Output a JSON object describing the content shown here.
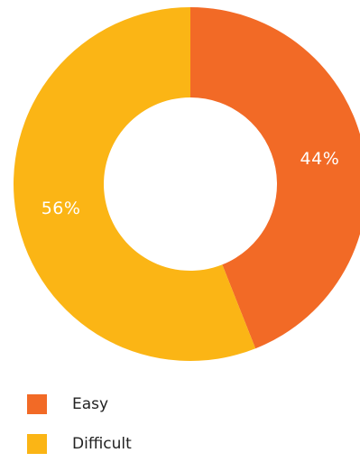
{
  "chart_data": {
    "type": "pie",
    "categories": [
      "Easy",
      "Difficult"
    ],
    "values": [
      44,
      56
    ],
    "value_labels": [
      "44%",
      "56%"
    ],
    "colors": [
      "#F26A26",
      "#FBB515"
    ],
    "legend": "bottom-left"
  }
}
